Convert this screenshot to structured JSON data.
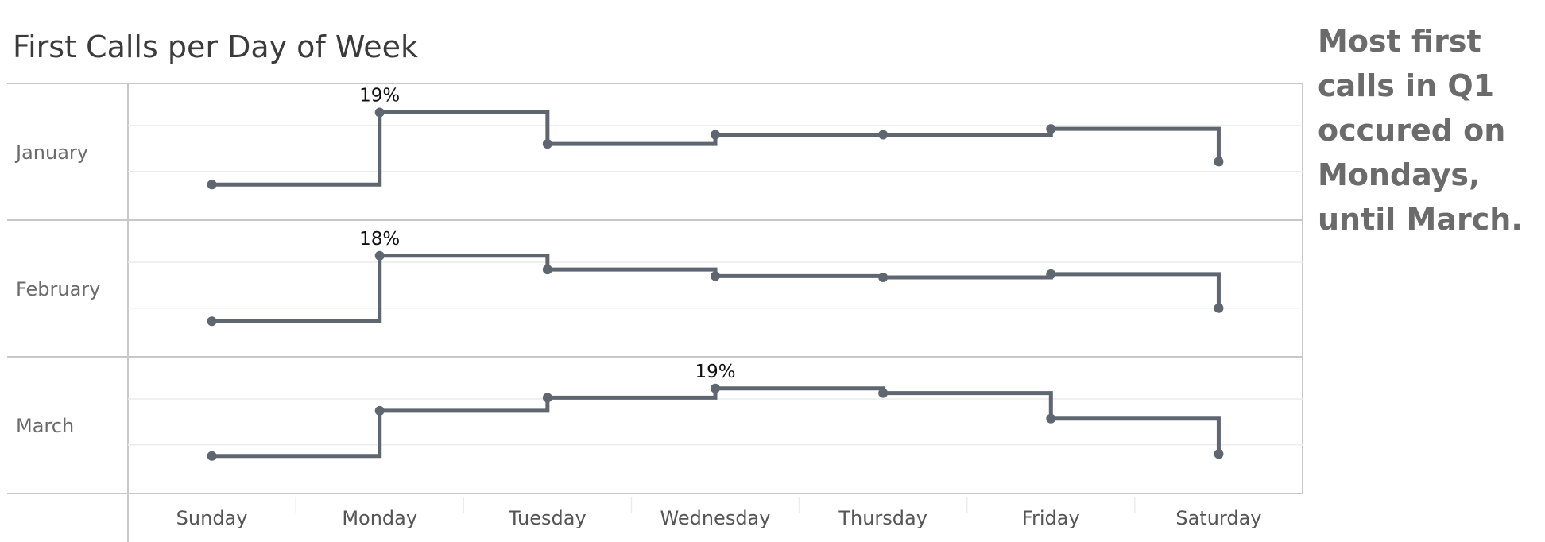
{
  "title": "First Calls per Day of Week",
  "annotation": "Most first calls in Q1 occured on Mondays, until March.",
  "colors": {
    "line": "#5f6670",
    "border": "#c8c8c8",
    "gridline": "#ececec",
    "title": "#3b3b3b",
    "annotation": "#6b6b6b"
  },
  "chart_data": {
    "type": "line",
    "subtype": "step-line small multiples",
    "title": "First Calls per Day of Week",
    "categories": [
      "Sunday",
      "Monday",
      "Tuesday",
      "Wednesday",
      "Thursday",
      "Friday",
      "Saturday"
    ],
    "series": [
      {
        "name": "January",
        "values": [
          8.0,
          19.0,
          14.2,
          15.6,
          15.6,
          16.5,
          11.5
        ],
        "label_index": 1,
        "label": "19%"
      },
      {
        "name": "February",
        "values": [
          8.0,
          18.0,
          15.9,
          14.9,
          14.7,
          15.2,
          10.0
        ],
        "label_index": 1,
        "label": "18%"
      },
      {
        "name": "March",
        "values": [
          8.3,
          15.2,
          17.2,
          18.6,
          17.9,
          14.0,
          8.6
        ],
        "label_index": 3,
        "label": "19%"
      }
    ],
    "y_unit": "%",
    "grid": true,
    "legend": "none"
  }
}
